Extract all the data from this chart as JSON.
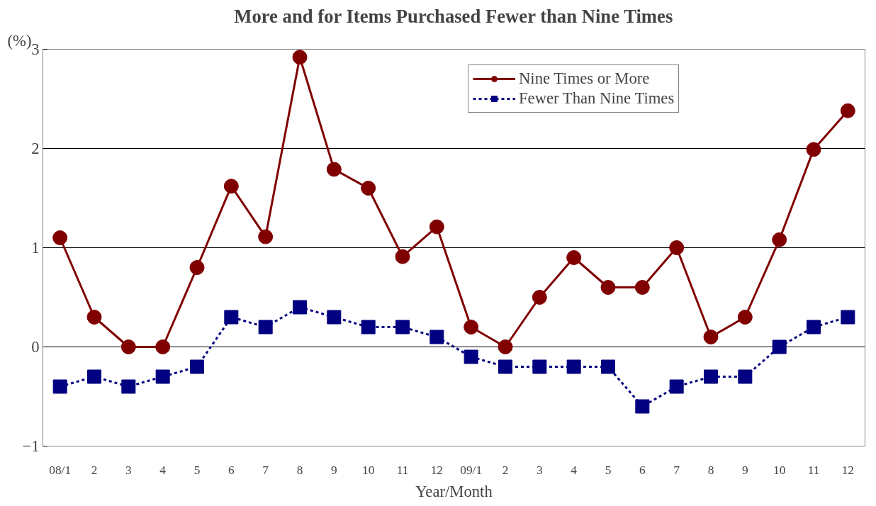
{
  "chart_data": {
    "type": "line",
    "title": "More and for Items Purchased Fewer than Nine Times",
    "ylabel": "(%)",
    "xlabel": "Year/Month",
    "categories": [
      "08/1",
      "2",
      "3",
      "4",
      "5",
      "6",
      "7",
      "8",
      "9",
      "10",
      "11",
      "12",
      "09/1",
      "2",
      "3",
      "4",
      "5",
      "6",
      "7",
      "8",
      "9",
      "10",
      "11",
      "12"
    ],
    "series": [
      {
        "name": "Nine Times or More",
        "color": "#800000",
        "marker": "circle",
        "line_style": "solid",
        "values": [
          1.1,
          0.3,
          0,
          0,
          0.8,
          1.62,
          1.11,
          2.92,
          1.79,
          1.6,
          0.91,
          1.21,
          0.2,
          0,
          0.5,
          0.9,
          0.6,
          0.6,
          1.0,
          0.1,
          0.3,
          1.08,
          1.99,
          2.38
        ]
      },
      {
        "name": "Fewer Than Nine Times",
        "color": "#000080",
        "marker": "square",
        "line_style": "dashed",
        "values": [
          -0.4,
          -0.3,
          -0.4,
          -0.3,
          -0.2,
          0.3,
          0.2,
          0.4,
          0.3,
          0.2,
          0.2,
          0.1,
          -0.1,
          -0.2,
          -0.2,
          -0.2,
          -0.2,
          -0.6,
          -0.4,
          -0.3,
          -0.3,
          0,
          0.2,
          0.3
        ]
      }
    ],
    "ylim": [
      -1,
      3
    ],
    "yticks": [
      -1,
      0,
      1,
      2,
      3
    ],
    "grid": "y",
    "legend": "top right"
  }
}
